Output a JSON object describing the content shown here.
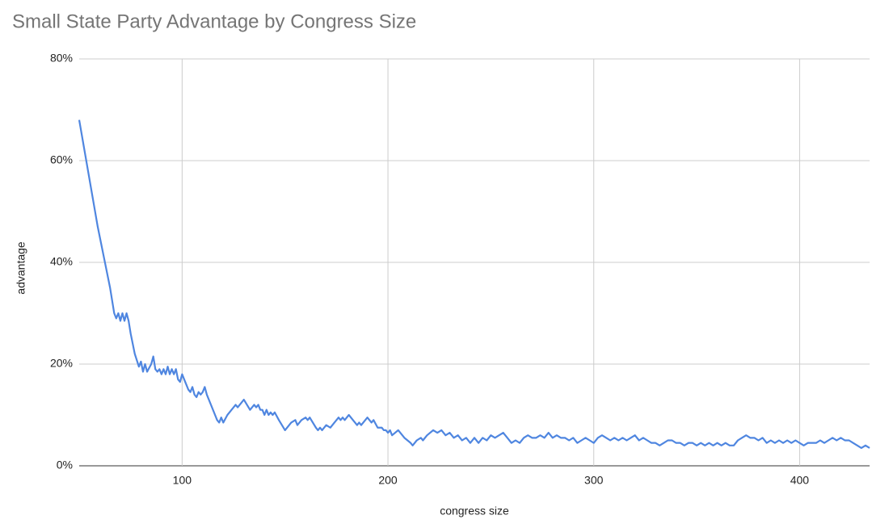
{
  "chart_data": {
    "type": "line",
    "title": "Small State Party Advantage by Congress Size",
    "x_label": "congress size",
    "y_label": "advantage",
    "xlim": [
      50,
      434
    ],
    "ylim": [
      0,
      80
    ],
    "xticks": [
      100,
      200,
      300,
      400
    ],
    "yticks": [
      {
        "value": 0,
        "label": "0%"
      },
      {
        "value": 20,
        "label": "20%"
      },
      {
        "value": 40,
        "label": "40%"
      },
      {
        "value": 60,
        "label": "60%"
      },
      {
        "value": 80,
        "label": "80%"
      }
    ],
    "grid": true,
    "series": [
      {
        "name": "advantage",
        "color": "#4f86e0",
        "x": [
          50,
          53,
          56,
          59,
          62,
          65,
          67,
          68,
          69,
          70,
          71,
          72,
          73,
          74,
          75,
          77,
          79,
          80,
          81,
          82,
          83,
          85,
          86,
          87,
          88,
          89,
          90,
          91,
          92,
          93,
          94,
          95,
          96,
          97,
          98,
          99,
          100,
          101,
          102,
          103,
          104,
          105,
          106,
          107,
          108,
          109,
          110,
          111,
          112,
          114,
          116,
          117,
          118,
          119,
          120,
          122,
          124,
          126,
          127,
          130,
          133,
          135,
          136,
          137,
          138,
          139,
          140,
          141,
          142,
          143,
          144,
          145,
          147,
          150,
          153,
          155,
          156,
          158,
          160,
          161,
          162,
          165,
          166,
          167,
          168,
          170,
          172,
          174,
          176,
          177,
          178,
          179,
          181,
          183,
          185,
          186,
          187,
          190,
          192,
          193,
          195,
          197,
          198,
          199,
          200,
          201,
          202,
          205,
          208,
          211,
          212,
          214,
          216,
          217,
          219,
          222,
          224,
          226,
          228,
          230,
          232,
          234,
          236,
          238,
          240,
          242,
          244,
          246,
          248,
          250,
          252,
          254,
          256,
          258,
          260,
          262,
          264,
          266,
          268,
          270,
          272,
          274,
          276,
          278,
          280,
          282,
          284,
          286,
          288,
          290,
          292,
          294,
          296,
          298,
          300,
          302,
          304,
          306,
          308,
          310,
          312,
          314,
          316,
          318,
          320,
          322,
          324,
          326,
          328,
          330,
          332,
          334,
          336,
          338,
          340,
          342,
          344,
          346,
          348,
          350,
          352,
          354,
          356,
          358,
          360,
          362,
          364,
          366,
          368,
          370,
          372,
          374,
          376,
          378,
          380,
          382,
          384,
          386,
          388,
          390,
          392,
          394,
          396,
          398,
          400,
          402,
          404,
          406,
          408,
          410,
          412,
          414,
          416,
          418,
          420,
          422,
          424,
          426,
          428,
          430,
          432,
          434
        ],
        "values": [
          68,
          61,
          54,
          47,
          41,
          35,
          30,
          29,
          30,
          28.5,
          30,
          28.5,
          30,
          28.5,
          26,
          22,
          19.5,
          20.5,
          18.5,
          20,
          18.5,
          20,
          21.5,
          19,
          18.5,
          19,
          18,
          19,
          18,
          19.5,
          18,
          19,
          18,
          19,
          17,
          16.5,
          18,
          17,
          16,
          15,
          14.5,
          15.5,
          14,
          13.5,
          14.5,
          14,
          14.5,
          15.5,
          14,
          12,
          10,
          9,
          8.5,
          9.5,
          8.5,
          10,
          11,
          12,
          11.5,
          13,
          11,
          12,
          11.5,
          12,
          11,
          11,
          10,
          11,
          10,
          10.5,
          10,
          10.5,
          9,
          7,
          8.5,
          9,
          8,
          9,
          9.5,
          9,
          9.5,
          7.5,
          7,
          7.5,
          7,
          8,
          7.5,
          8.5,
          9.5,
          9,
          9.5,
          9,
          10,
          9,
          8,
          8.5,
          8,
          9.5,
          8.5,
          9,
          7.5,
          7.5,
          7,
          7,
          6.5,
          7,
          6,
          7,
          5.5,
          4.5,
          4,
          5,
          5.5,
          5,
          6,
          7,
          6.5,
          7,
          6,
          6.5,
          5.5,
          6,
          5,
          5.5,
          4.5,
          5.5,
          4.5,
          5.5,
          5,
          6,
          5.5,
          6,
          6.5,
          5.5,
          4.5,
          5,
          4.5,
          5.5,
          6,
          5.5,
          5.5,
          6,
          5.5,
          6.5,
          5.5,
          6,
          5.5,
          5.5,
          5,
          5.5,
          4.5,
          5,
          5.5,
          5,
          4.5,
          5.5,
          6,
          5.5,
          5,
          5.5,
          5,
          5.5,
          5,
          5.5,
          6,
          5,
          5.5,
          5,
          4.5,
          4.5,
          4,
          4.5,
          5,
          5,
          4.5,
          4.5,
          4,
          4.5,
          4.5,
          4,
          4.5,
          4,
          4.5,
          4,
          4.5,
          4,
          4.5,
          4,
          4,
          5,
          5.5,
          6,
          5.5,
          5.5,
          5,
          5.5,
          4.5,
          5,
          4.5,
          5,
          4.5,
          5,
          4.5,
          5,
          4.5,
          4,
          4.5,
          4.5,
          4.5,
          5,
          4.5,
          5,
          5.5,
          5,
          5.5,
          5,
          5,
          4.5,
          4,
          3.5,
          4,
          3.5
        ]
      }
    ]
  }
}
